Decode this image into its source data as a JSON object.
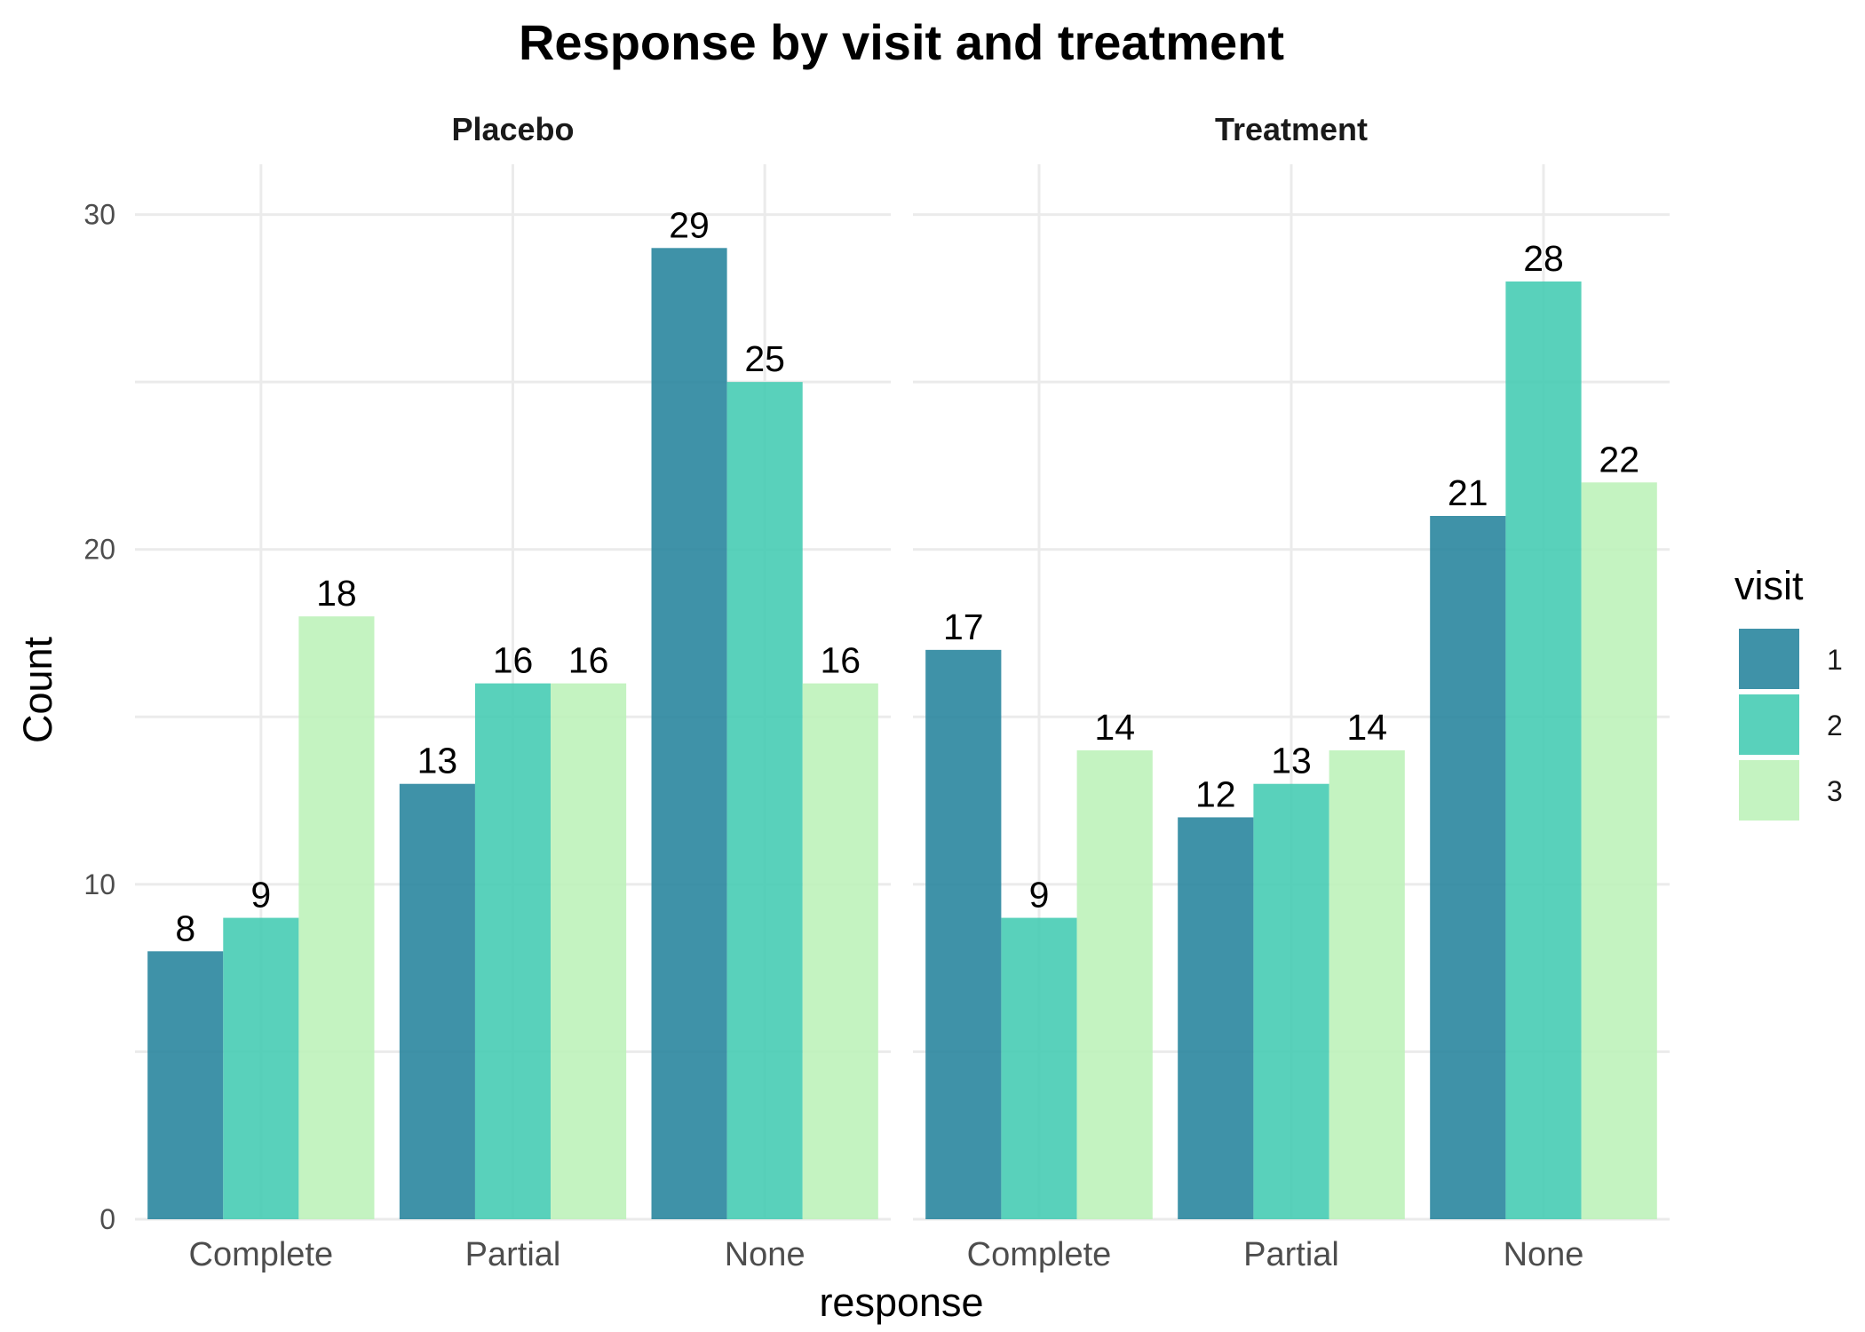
{
  "chart_data": {
    "type": "bar",
    "title": "Response by visit and treatment",
    "xlabel": "response",
    "ylabel": "Count",
    "ylim": [
      0,
      31.5
    ],
    "yticks": [
      0,
      10,
      20,
      30
    ],
    "categories": [
      "Complete",
      "Partial",
      "None"
    ],
    "grid": true,
    "legend": {
      "title": "visit",
      "placement": "right",
      "entries": [
        {
          "label": "1",
          "color": "#2A869F"
        },
        {
          "label": "2",
          "color": "#47CCB4"
        },
        {
          "label": "3",
          "color": "#BEF2BA"
        }
      ]
    },
    "panels": [
      {
        "name": "Placebo",
        "series": [
          {
            "name": "1",
            "values": [
              8,
              13,
              29
            ]
          },
          {
            "name": "2",
            "values": [
              9,
              16,
              25
            ]
          },
          {
            "name": "3",
            "values": [
              18,
              16,
              16
            ]
          }
        ]
      },
      {
        "name": "Treatment",
        "series": [
          {
            "name": "1",
            "values": [
              17,
              12,
              21
            ]
          },
          {
            "name": "2",
            "values": [
              9,
              13,
              28
            ]
          },
          {
            "name": "3",
            "values": [
              14,
              14,
              22
            ]
          }
        ]
      }
    ]
  }
}
